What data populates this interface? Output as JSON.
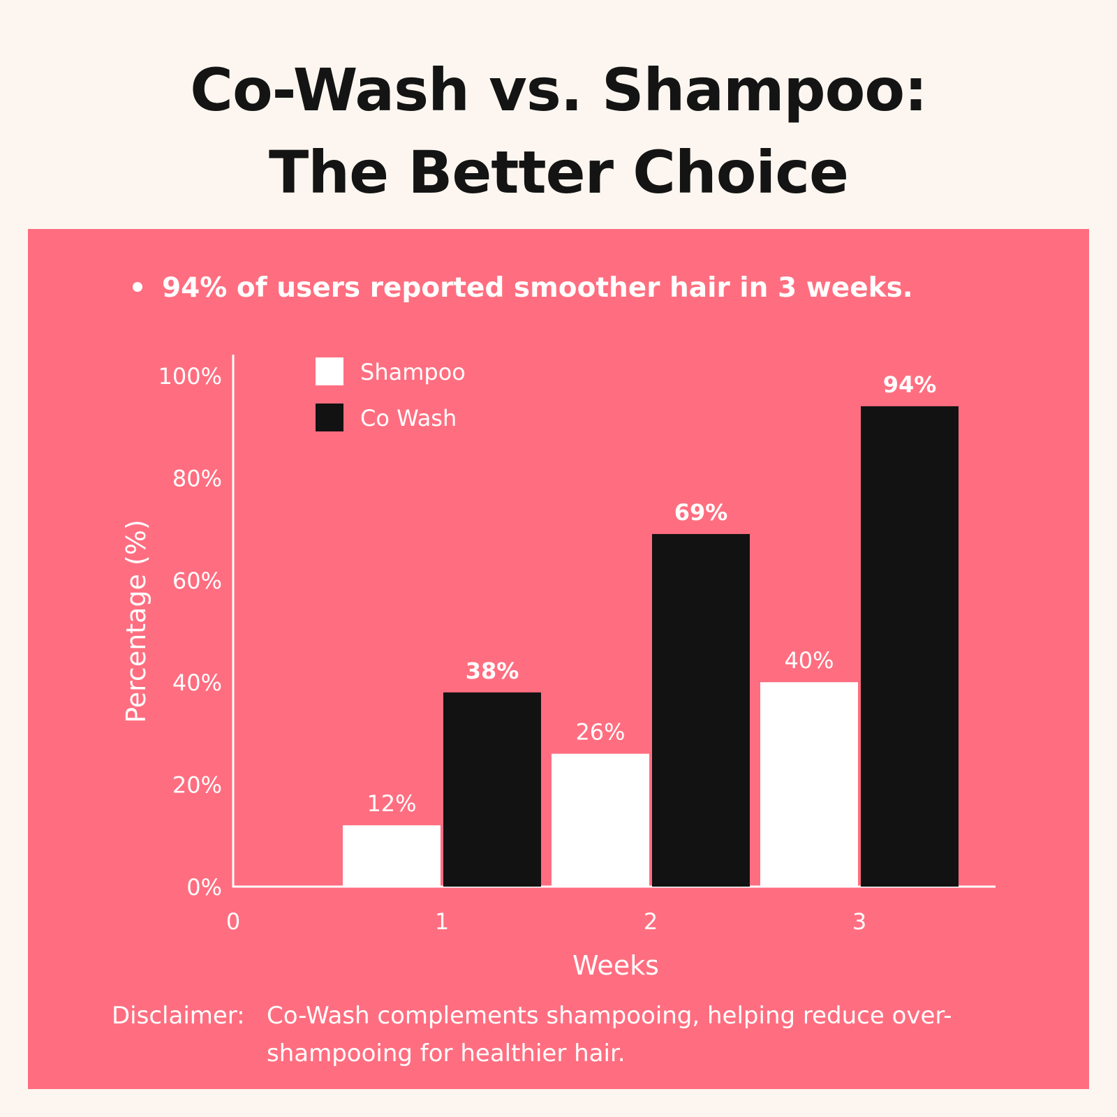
{
  "header": {
    "title_line1": "Co-Wash vs. Shampoo:",
    "title_line2": "The Better Choice"
  },
  "highlight": "94% of users reported smoother hair in 3 weeks.",
  "disclaimer": {
    "label": "Disclaimer:",
    "text": "Co-Wash complements shampooing, helping reduce over-shampooing for healthier hair."
  },
  "colors": {
    "panel": "#ff6e80",
    "background": "#fdf6f0",
    "shampoo": "#ffffff",
    "co_wash": "#121212",
    "text_light": "#ffffff"
  },
  "chart_data": {
    "type": "bar",
    "xlabel": "Weeks",
    "ylabel": "Percentage (%)",
    "x_ticks": [
      "0",
      "1",
      "2",
      "3"
    ],
    "categories": [
      1,
      2,
      3
    ],
    "xlim": [
      0,
      3.65
    ],
    "ylim": [
      0,
      100
    ],
    "y_ticks": [
      0,
      20,
      40,
      60,
      80,
      100
    ],
    "y_tick_labels": [
      "0%",
      "20%",
      "40%",
      "60%",
      "80%",
      "100%"
    ],
    "legend_position": "top-left",
    "grid": false,
    "series": [
      {
        "name": "Shampoo",
        "values": [
          12,
          26,
          40
        ],
        "labels": [
          "12%",
          "26%",
          "40%"
        ],
        "color": "#ffffff",
        "label_bold": false
      },
      {
        "name": "Co Wash",
        "values": [
          38,
          69,
          94
        ],
        "labels": [
          "38%",
          "69%",
          "94%"
        ],
        "color": "#121212",
        "label_bold": true
      }
    ]
  }
}
